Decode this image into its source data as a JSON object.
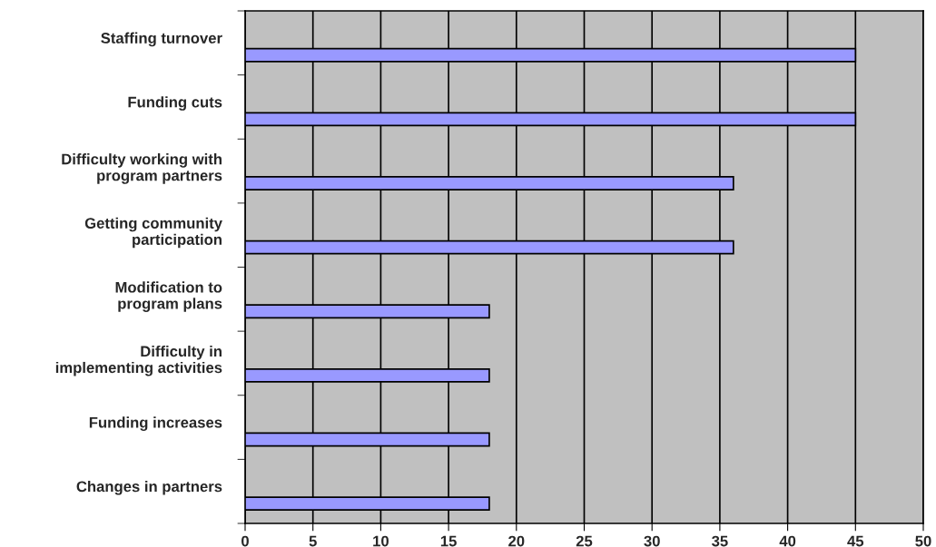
{
  "chart_data": {
    "type": "bar",
    "orientation": "horizontal",
    "categories": [
      "Staffing turnover",
      "Funding cuts",
      "Difficulty working with\nprogram partners",
      "Getting community\nparticipation",
      "Modification to\nprogram plans",
      "Difficulty in\nimplementing activities",
      "Funding increases",
      "Changes in partners"
    ],
    "values": [
      45,
      45,
      36,
      36,
      18,
      18,
      18,
      18
    ],
    "color": "#9999ff",
    "xlim": [
      0,
      50
    ],
    "xticks": [
      0,
      5,
      10,
      15,
      20,
      25,
      30,
      35,
      40,
      45,
      50
    ],
    "grid": "x"
  }
}
